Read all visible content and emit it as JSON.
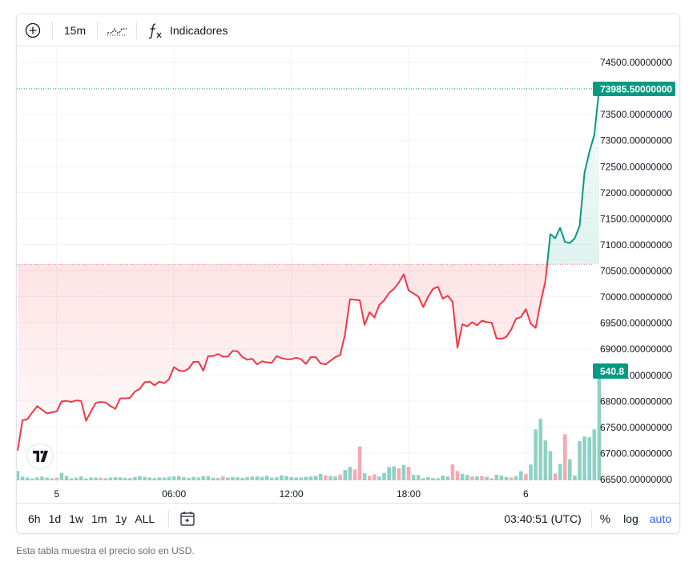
{
  "toolbar": {
    "interval": "15m",
    "indicators_label": "Indicadores",
    "icons": [
      "plus-circle-icon",
      "chart-type-icon",
      "fx-icon"
    ]
  },
  "range_buttons": [
    "6h",
    "1d",
    "1w",
    "1m",
    "1y",
    "ALL"
  ],
  "bottom": {
    "time": "03:40:51 (UTC)",
    "percent": "%",
    "log": "log",
    "auto": "auto"
  },
  "footer": "Esta tabla muestra el precio solo en USD.",
  "chart_data": {
    "type": "area",
    "price_axis": {
      "range": [
        66400,
        74800
      ],
      "ticks": [
        "74500.00000000",
        "74000.00000000",
        "73500.00000000",
        "73000.00000000",
        "72500.00000000",
        "72000.00000000",
        "71500.00000000",
        "71000.00000000",
        "70500.00000000",
        "70000.00000000",
        "69500.00000000",
        "69000.00000000",
        "68500.00000000",
        "68000.00000000",
        "67500.00000000",
        "67000.00000000",
        "66500.00000000"
      ],
      "tick_values": [
        74500,
        74000,
        73500,
        73000,
        72500,
        72000,
        71500,
        71000,
        70500,
        70000,
        69500,
        69000,
        68500,
        68000,
        67500,
        67000,
        66500
      ]
    },
    "time_axis": {
      "labels": [
        "5",
        "06:00",
        "12:00",
        "18:00",
        "6"
      ],
      "label_index": [
        8,
        32,
        56,
        80,
        104
      ]
    },
    "baseline": 70620,
    "last_price": 73985.5,
    "last_price_label": "73985.50000000",
    "last_volume_label": "540.8",
    "grid": true,
    "colors": {
      "up": "#089981",
      "down": "#f23645",
      "up_vol": "#8fd1c4",
      "down_vol": "#f7a9b0",
      "label_bg": "#089981",
      "grid": "#f0f3fa"
    },
    "price": [
      67050,
      67630,
      67650,
      67780,
      67900,
      67830,
      67760,
      67780,
      67800,
      67990,
      68000,
      67980,
      68010,
      68000,
      67620,
      67800,
      67960,
      67980,
      67970,
      67900,
      67850,
      68050,
      68050,
      68060,
      68180,
      68230,
      68360,
      68370,
      68300,
      68370,
      68340,
      68420,
      68650,
      68580,
      68570,
      68620,
      68750,
      68750,
      68580,
      68860,
      68860,
      68900,
      68850,
      68850,
      68960,
      68950,
      68840,
      68790,
      68810,
      68700,
      68760,
      68740,
      68730,
      68860,
      68820,
      68800,
      68800,
      68830,
      68800,
      68710,
      68840,
      68840,
      68720,
      68700,
      68770,
      68840,
      68880,
      69280,
      69950,
      69940,
      69930,
      69460,
      69700,
      69600,
      69840,
      69930,
      70070,
      70150,
      70270,
      70430,
      70120,
      70060,
      70000,
      69800,
      70000,
      70150,
      70190,
      69960,
      70020,
      69900,
      69020,
      69470,
      69430,
      69510,
      69450,
      69540,
      69510,
      69500,
      69200,
      69190,
      69230,
      69370,
      69580,
      69610,
      69760,
      69480,
      69400,
      69880,
      70300,
      71200,
      71120,
      71320,
      71050,
      71030,
      71120,
      71360,
      72380,
      72780,
      73100,
      73985
    ],
    "volume": [
      45,
      18,
      14,
      9,
      14,
      18,
      13,
      10,
      13,
      36,
      20,
      10,
      13,
      18,
      9,
      14,
      13,
      12,
      10,
      13,
      15,
      14,
      12,
      11,
      16,
      20,
      17,
      14,
      11,
      14,
      13,
      17,
      19,
      21,
      15,
      12,
      17,
      14,
      20,
      20,
      13,
      12,
      19,
      13,
      16,
      15,
      12,
      15,
      18,
      19,
      17,
      22,
      13,
      15,
      24,
      21,
      16,
      13,
      14,
      17,
      19,
      22,
      31,
      24,
      21,
      19,
      28,
      50,
      65,
      52,
      164,
      34,
      22,
      29,
      19,
      36,
      64,
      68,
      58,
      75,
      65,
      26,
      25,
      11,
      15,
      11,
      10,
      23,
      18,
      77,
      45,
      31,
      26,
      18,
      19,
      21,
      17,
      10,
      27,
      23,
      16,
      14,
      21,
      44,
      30,
      76,
      246,
      297,
      193,
      141,
      33,
      79,
      223,
      102,
      23,
      189,
      211,
      208,
      246,
      541
    ],
    "volume_colors": "u,u,u,u,u,u,u,u,d,u,u,u,u,u,u,u,u,d,u,u,u,u,u,u,u,u,u,u,u,u,u,u,u,u,u,u,u,u,u,u,u,u,d,u,u,u,u,u,u,u,u,u,u,u,u,u,u,u,u,u,u,u,u,d,u,u,d,u,u,d,d,u,d,d,u,u,u,u,d,u,d,u,u,u,u,u,u,u,u,d,d,u,u,d,u,d,u,d,u,u,u,d,u,u,d,u,u,u,u,u,d,u,d,u,u,u,u,u,u,u"
  }
}
